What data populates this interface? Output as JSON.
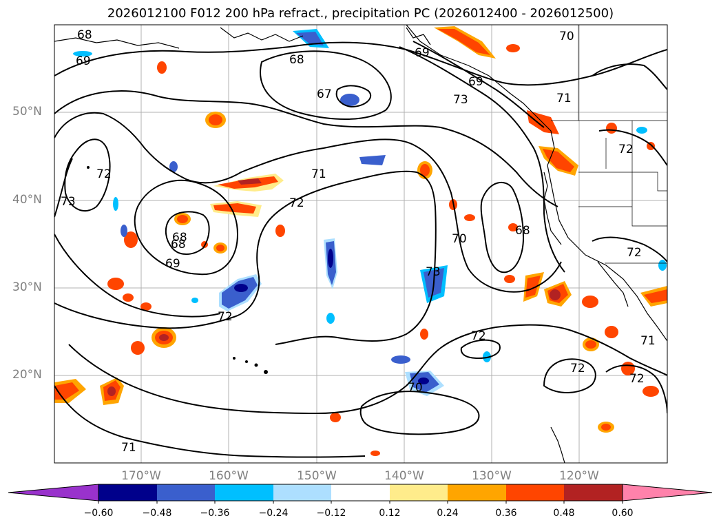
{
  "title": "2026012100 F012 200 hPa refract., precipitation PC (2026012400 - 2026012500)",
  "lat_labels": [
    "50°N",
    "40°N",
    "30°N",
    "20°N"
  ],
  "lon_labels": [
    "170°W",
    "160°W",
    "150°W",
    "140°W",
    "130°W",
    "120°W"
  ],
  "colorbar": {
    "tick_labels": [
      "−0.60",
      "−0.48",
      "−0.36",
      "−0.24",
      "−0.12",
      "0.12",
      "0.24",
      "0.36",
      "0.48",
      "0.60"
    ],
    "colors": [
      "#9932CC",
      "#00008B",
      "#3A5FCD",
      "#00BFFF",
      "#ADDFFF",
      "#FFFFFF",
      "#FFEC8B",
      "#FFA500",
      "#FF4500",
      "#B22222",
      "#FF82AB"
    ]
  },
  "contour_labels": [
    "68",
    "69",
    "68",
    "69",
    "67",
    "70",
    "72",
    "73",
    "71",
    "72",
    "69",
    "68",
    "70",
    "68",
    "72",
    "73",
    "72",
    "72",
    "72",
    "71",
    "70",
    "71",
    "72",
    "72",
    "71",
    "73",
    "68",
    "69"
  ]
}
